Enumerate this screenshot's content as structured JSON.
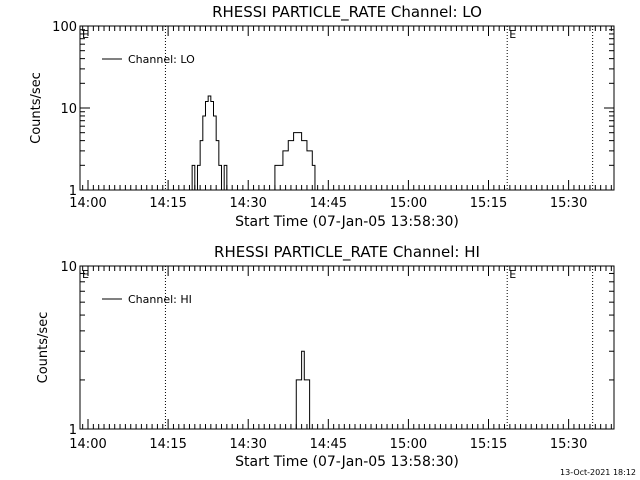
{
  "footer": {
    "timestamp": "13-Oct-2021 18:12"
  },
  "chart_data": [
    {
      "type": "line",
      "title": "RHESSI PARTICLE_RATE Channel: LO",
      "xlabel": "Start Time (07-Jan-05 13:58:30)",
      "ylabel": "Counts/sec",
      "yscale": "log",
      "ylim": [
        1,
        100
      ],
      "xlim": [
        "13:58:30",
        "15:38:30"
      ],
      "x_tick_labels": [
        "14:00",
        "14:15",
        "14:30",
        "14:45",
        "15:00",
        "15:15",
        "15:30"
      ],
      "y_tick_labels": [
        "1",
        "10",
        "100"
      ],
      "legend": {
        "position": "top-left",
        "entries": [
          "Channel: LO"
        ]
      },
      "markers": [
        {
          "label": "E",
          "x": "13:58:30"
        },
        {
          "label": "",
          "x": "14:14:30"
        },
        {
          "label": "E",
          "x": "15:18:30"
        },
        {
          "label": "",
          "x": "15:34:30"
        }
      ],
      "series": [
        {
          "name": "Channel: LO",
          "x": [
            "14:19:00",
            "14:19:30",
            "14:20:00",
            "14:20:30",
            "14:21:00",
            "14:21:30",
            "14:22:00",
            "14:22:30",
            "14:23:00",
            "14:23:30",
            "14:24:00",
            "14:24:30",
            "14:25:00",
            "14:25:30",
            "14:26:00",
            "14:34:00",
            "14:34:30",
            "14:35:00",
            "14:35:30",
            "14:36:00",
            "14:36:30",
            "14:37:00",
            "14:37:30",
            "14:38:00",
            "14:38:30",
            "14:39:00",
            "14:39:30",
            "14:40:00",
            "14:40:30",
            "14:41:00",
            "14:41:30",
            "14:42:00",
            "14:42:30",
            "14:43:00"
          ],
          "values": [
            1,
            2,
            1,
            2,
            4,
            8,
            12,
            14,
            12,
            8,
            4,
            2,
            1,
            2,
            1,
            1,
            1,
            2,
            2,
            2,
            3,
            3,
            4,
            4,
            5,
            5,
            5,
            4,
            4,
            3,
            3,
            2,
            1,
            1
          ]
        }
      ]
    },
    {
      "type": "line",
      "title": "RHESSI PARTICLE_RATE Channel: HI",
      "xlabel": "Start Time (07-Jan-05 13:58:30)",
      "ylabel": "Counts/sec",
      "yscale": "log",
      "ylim": [
        1,
        10
      ],
      "xlim": [
        "13:58:30",
        "15:38:30"
      ],
      "x_tick_labels": [
        "14:00",
        "14:15",
        "14:30",
        "14:45",
        "15:00",
        "15:15",
        "15:30"
      ],
      "y_tick_labels": [
        "1",
        "10"
      ],
      "legend": {
        "position": "top-left",
        "entries": [
          "Channel: HI"
        ]
      },
      "markers": [
        {
          "label": "E",
          "x": "13:58:30"
        },
        {
          "label": "",
          "x": "14:14:30"
        },
        {
          "label": "E",
          "x": "15:18:30"
        },
        {
          "label": "",
          "x": "15:34:30"
        }
      ],
      "series": [
        {
          "name": "Channel: HI",
          "x": [
            "14:38:00",
            "14:38:30",
            "14:39:00",
            "14:39:30",
            "14:40:00",
            "14:40:30",
            "14:41:00",
            "14:41:30",
            "14:42:00"
          ],
          "values": [
            1,
            1,
            2,
            2,
            3,
            2,
            2,
            1,
            1
          ]
        }
      ]
    }
  ]
}
